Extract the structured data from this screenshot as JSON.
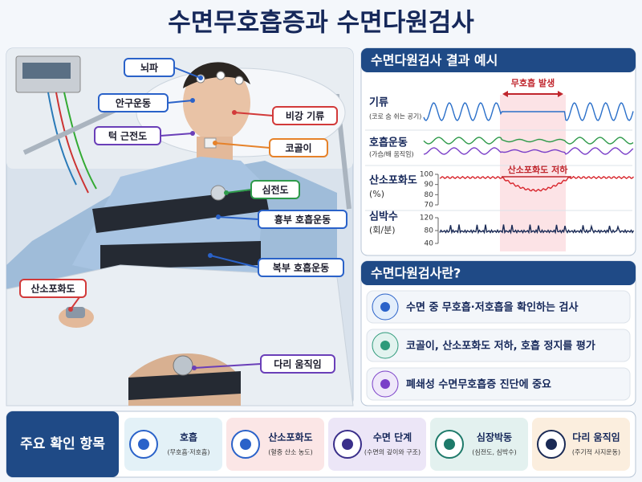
{
  "title": "수면무호흡증과 수면다원검사",
  "photo_labels": [
    "뇌파",
    "안구운동",
    "비강 기류",
    "턱 근전도",
    "코골이",
    "심전도",
    "흉부 호흡운동",
    "복부 호흡운동",
    "산소포화도",
    "다리 움직임"
  ],
  "result_example": {
    "title": "수면다원검사 결과 예시",
    "apnea_label": "무호흡 발생",
    "desat_label": "산소포화도 저하",
    "rows": [
      {
        "label": "기류",
        "sub": "(코로 숨 쉬는 공기)"
      },
      {
        "label": "호흡운동",
        "sub": "(가슴/배 움직임)"
      },
      {
        "label": "산소포화도",
        "sub": "(%)",
        "ticks": [
          100,
          90,
          80,
          70
        ]
      },
      {
        "label": "심박수",
        "sub": "(회/분)",
        "ticks": [
          120,
          80,
          40
        ]
      }
    ]
  },
  "about": {
    "title": "수면다원검사란?",
    "items": [
      "수면 중 무호흡·저호흡을 확인하는 검사",
      "코골이, 산소포화도 저하, 호흡 정지를 평가",
      "폐쇄성 수면무호흡증 진단에 중요"
    ]
  },
  "key_items": {
    "title": "주요 확인 항목",
    "items": [
      {
        "label": "호흡",
        "sub": "(무호흡·저호흡)"
      },
      {
        "label": "산소포화도",
        "sub": "(혈중 산소 농도)"
      },
      {
        "label": "수면 단계",
        "sub": "(수면의 깊이와 구조)"
      },
      {
        "label": "심장박동",
        "sub": "(심전도, 심박수)"
      },
      {
        "label": "다리 움직임",
        "sub": "(주기적 사지운동)"
      }
    ]
  }
}
